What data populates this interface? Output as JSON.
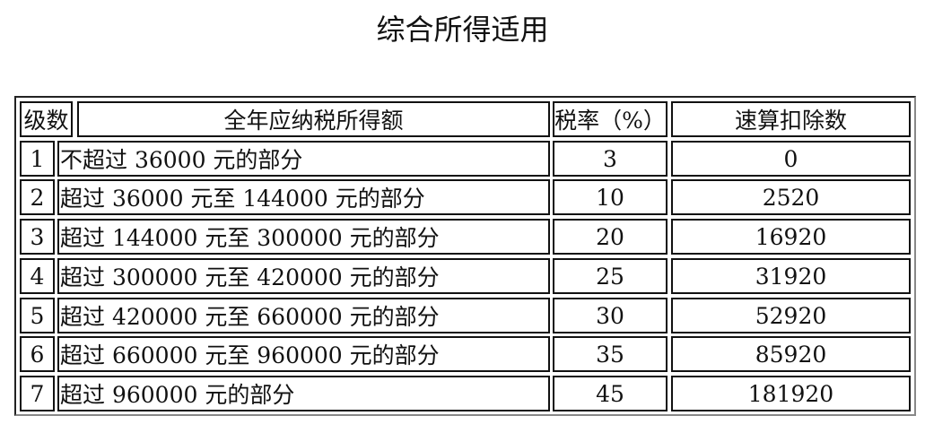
{
  "title": "综合所得适用",
  "table": {
    "headers": [
      "级数",
      "全年应纳税所得额",
      "税率（%）",
      "速算扣除数"
    ],
    "rows": [
      [
        "1",
        "不超过 36000 元的部分",
        "3",
        "0"
      ],
      [
        "2",
        "超过 36000 元至 144000 元的部分",
        "10",
        "2520"
      ],
      [
        "3",
        "超过 144000 元至 300000 元的部分",
        "20",
        "16920"
      ],
      [
        "4",
        "超过 300000 元至 420000 元的部分",
        "25",
        "31920"
      ],
      [
        "5",
        "超过 420000 元至 660000 元的部分",
        "30",
        "52920"
      ],
      [
        "6",
        "超过 660000 元至 960000 元的部分",
        "35",
        "85920"
      ],
      [
        "7",
        "超过 960000 元的部分",
        "45",
        "181920"
      ]
    ]
  }
}
